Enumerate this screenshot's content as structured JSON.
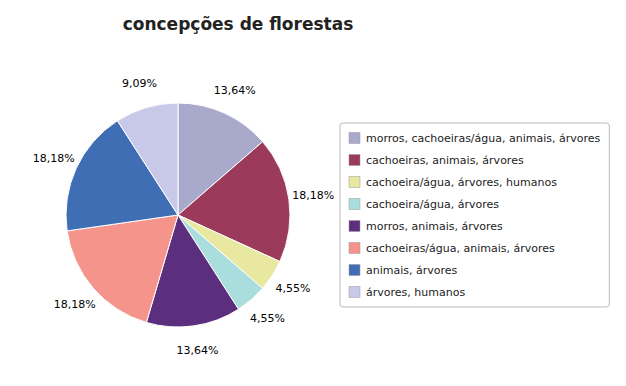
{
  "chart_data": {
    "type": "pie",
    "title": "concepções de florestas",
    "categories": [
      "morros, cachoeiras/água, animais, árvores",
      "cachoeiras, animais, árvores",
      "cachoeira/água, árvores, humanos",
      "cachoeira/água, árvores",
      "morros, animais, árvores",
      "cachoeiras/água, animais, árvores",
      "animais, árvores",
      "árvores, humanos"
    ],
    "values": [
      13.64,
      18.18,
      4.55,
      4.55,
      13.64,
      18.18,
      18.18,
      9.09
    ],
    "colors": [
      "#A9A9CC",
      "#9B3A5A",
      "#E8E8A0",
      "#AADDDD",
      "#5C2E7E",
      "#F4948A",
      "#3F6EB5",
      "#C8C8E8"
    ],
    "data_labels": true,
    "value_labels": [
      "13,64%",
      "18,18%",
      "4,55%",
      "4,55%",
      "13,64%",
      "18,18%",
      "18,18%",
      "9,09%"
    ],
    "legend": "right"
  }
}
